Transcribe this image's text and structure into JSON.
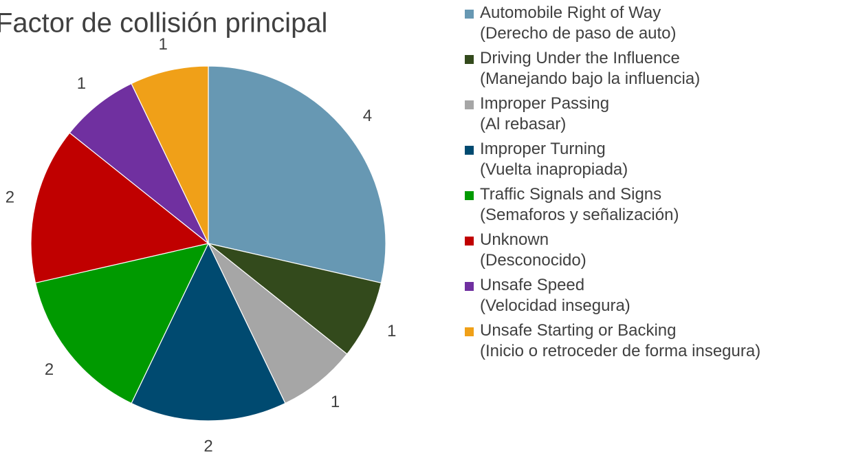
{
  "chart_data": {
    "type": "pie",
    "title": "Factor de collisión principal",
    "categories": [
      "Automobile Right of Way\n(Derecho de paso de auto)",
      "Driving Under the Influence\n(Manejando bajo la influencia)",
      "Improper Passing\n(Al rebasar)",
      "Improper Turning\n(Vuelta inapropiada)",
      "Traffic Signals and Signs\n(Semaforos y señalización)",
      "Unknown\n(Desconocido)",
      "Unsafe Speed\n(Velocidad insegura)",
      "Unsafe Starting or Backing\n(Inicio o retroceder de forma insegura)"
    ],
    "values": [
      4,
      1,
      1,
      2,
      2,
      2,
      1,
      1
    ],
    "colors": [
      "#6798b3",
      "#334a1c",
      "#a6a6a6",
      "#004a70",
      "#009a00",
      "#c00000",
      "#7030a0",
      "#f0a018"
    ],
    "legend": "right"
  }
}
